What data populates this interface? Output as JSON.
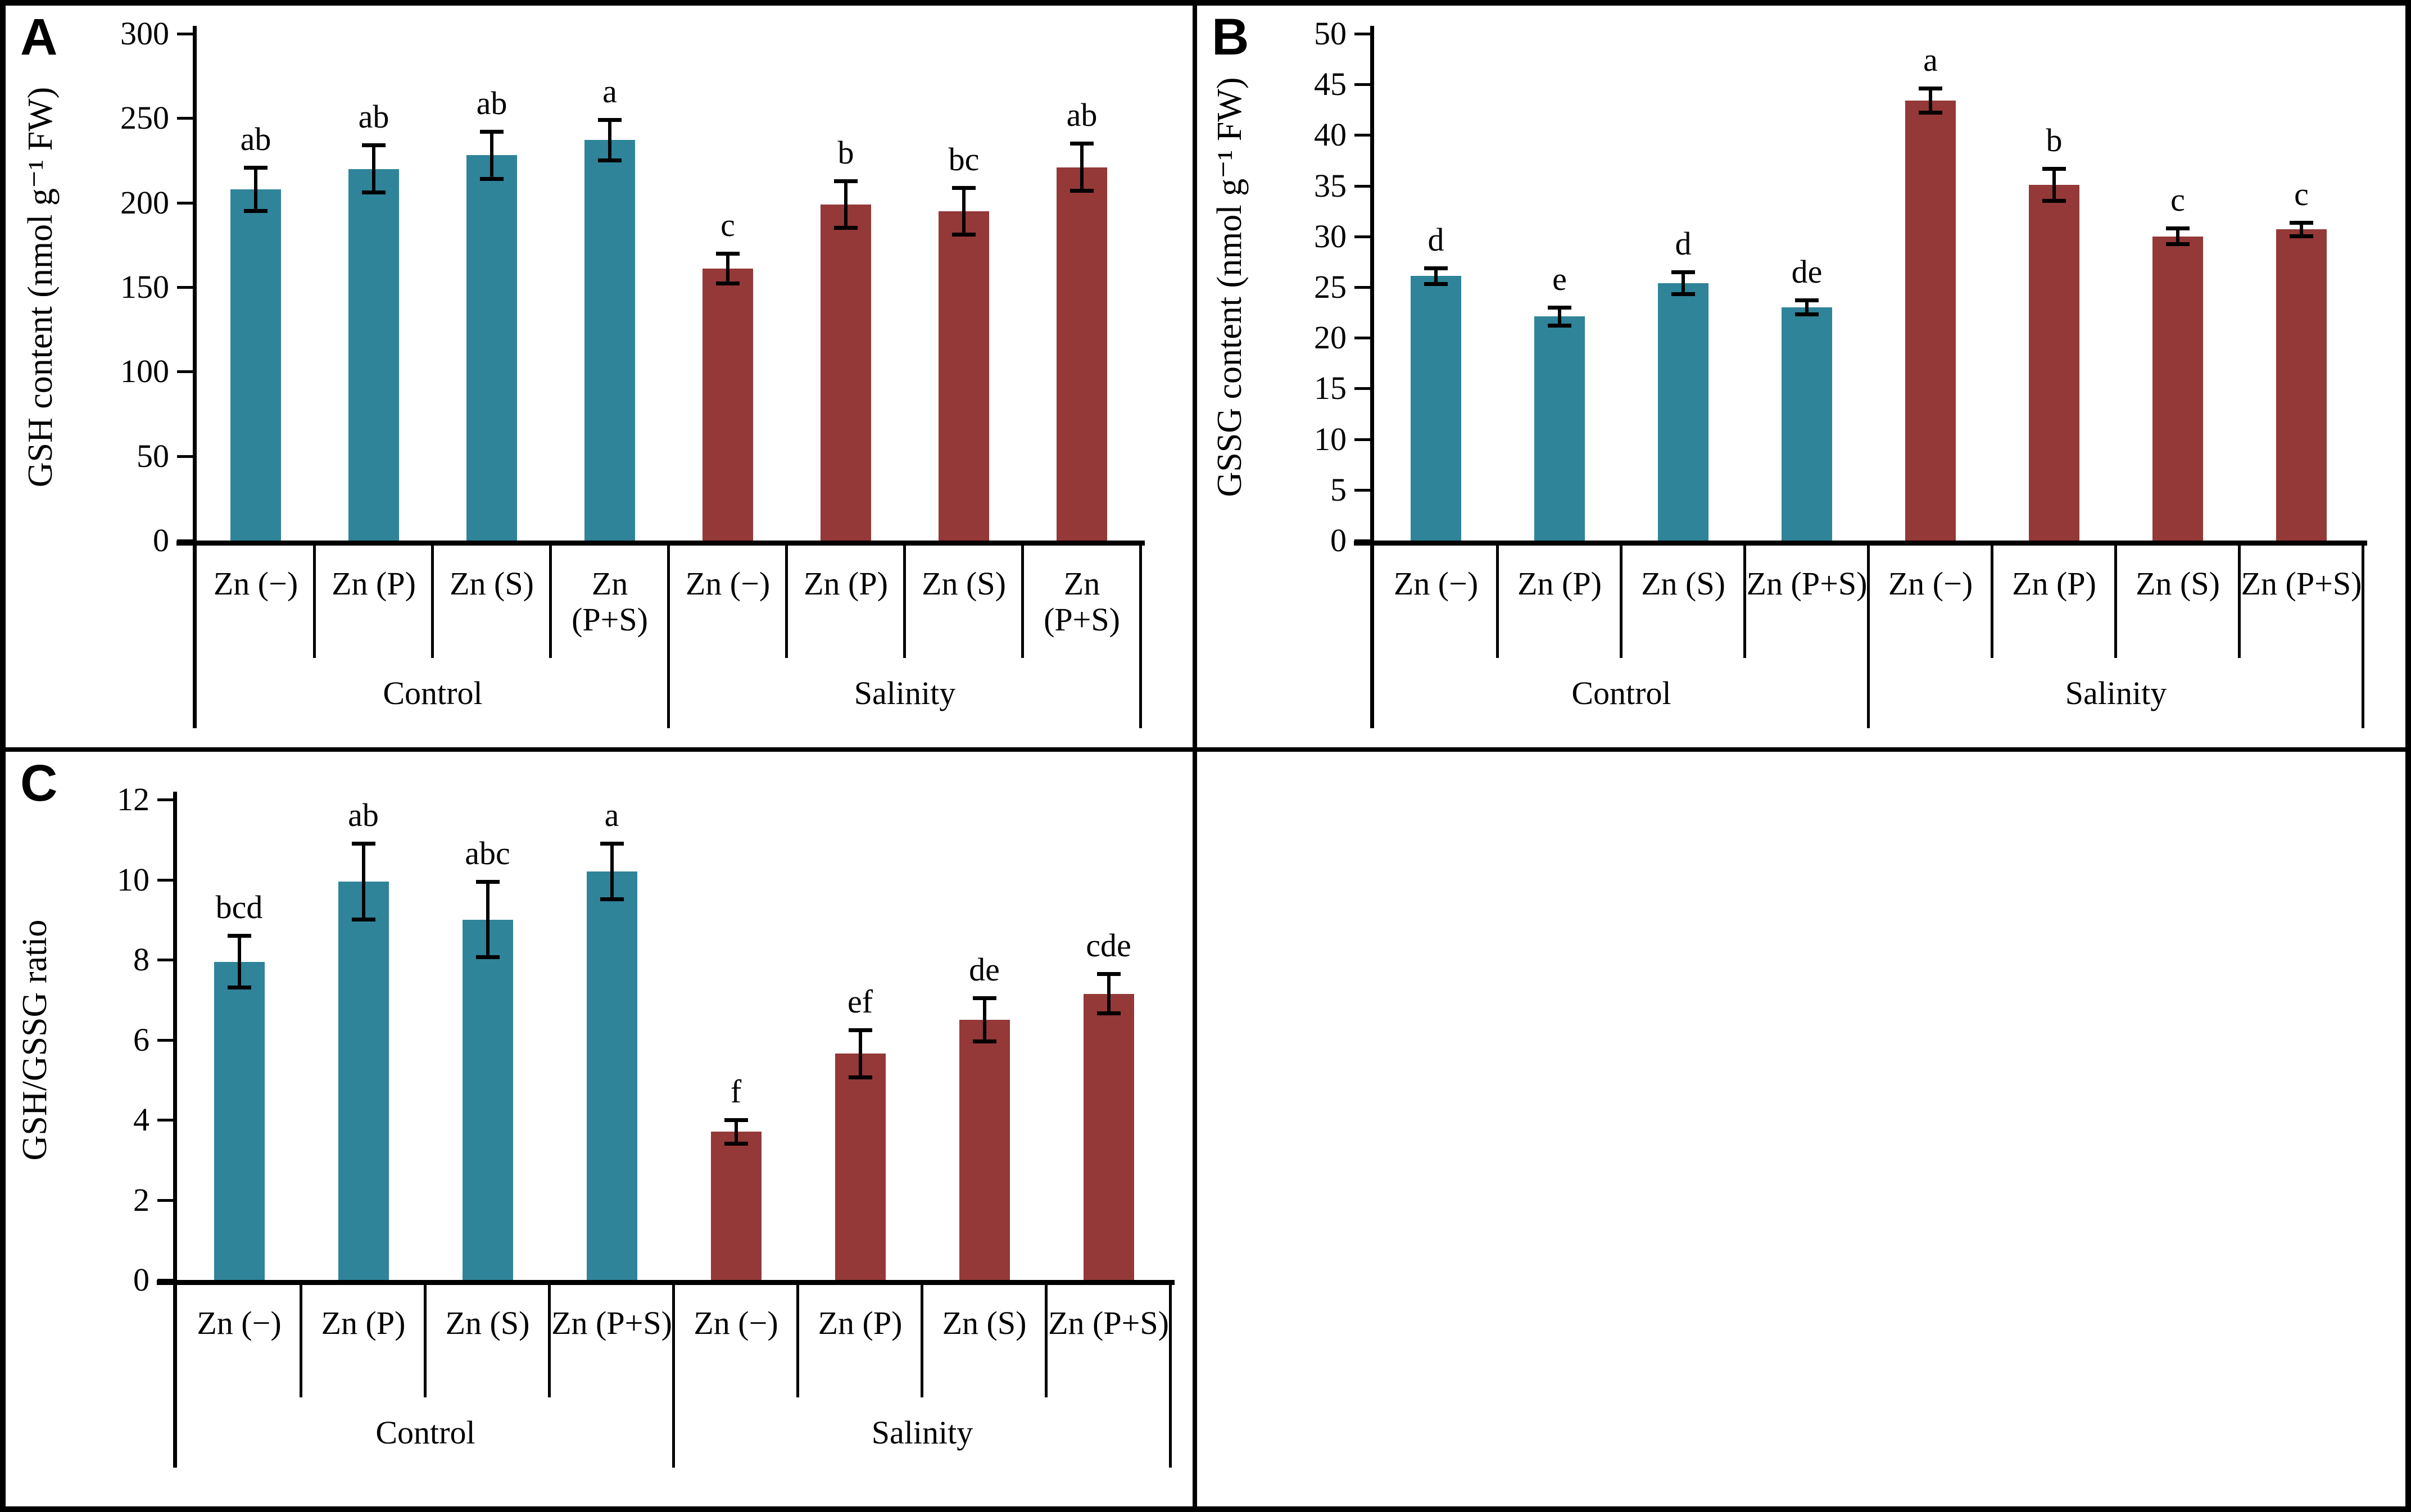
{
  "figure": {
    "panels": [
      {
        "letter": "A"
      },
      {
        "letter": "B"
      },
      {
        "letter": "C"
      }
    ]
  },
  "chart_data": [
    {
      "type": "bar",
      "title": "",
      "xlabel": "",
      "ylabel": "GSH content (nmol g⁻¹ FW)",
      "ylim": [
        0,
        300
      ],
      "ytick_step": 50,
      "grid": false,
      "legend_position": "none",
      "error_bars": true,
      "categories": [
        "Zn (−)",
        "Zn (P)",
        "Zn (S)",
        "Zn (P+S)"
      ],
      "group_labels": [
        "Control",
        "Salinity"
      ],
      "series": [
        {
          "name": "Control",
          "color": "#2F8499",
          "values": [
            208,
            220,
            228,
            237
          ],
          "errors": [
            13,
            14,
            14,
            12
          ],
          "sig_letters": [
            "ab",
            "ab",
            "ab",
            "a"
          ]
        },
        {
          "name": "Salinity",
          "color": "#943838",
          "values": [
            161,
            199,
            195,
            221
          ],
          "errors": [
            9,
            14,
            14,
            14
          ],
          "sig_letters": [
            "c",
            "b",
            "bc",
            "ab"
          ]
        }
      ]
    },
    {
      "type": "bar",
      "title": "",
      "xlabel": "",
      "ylabel": "GSSG content (nmol g⁻¹ FW)",
      "ylim": [
        0,
        50
      ],
      "ytick_step": 5,
      "grid": false,
      "legend_position": "none",
      "error_bars": true,
      "categories": [
        "Zn (−)",
        "Zn (P)",
        "Zn (S)",
        "Zn (P+S)"
      ],
      "group_labels": [
        "Control",
        "Salinity"
      ],
      "series": [
        {
          "name": "Control",
          "color": "#2F8499",
          "values": [
            26.1,
            22.1,
            25.4,
            23.0
          ],
          "errors": [
            0.8,
            0.9,
            1.1,
            0.7
          ],
          "sig_letters": [
            "d",
            "e",
            "d",
            "de"
          ]
        },
        {
          "name": "Salinity",
          "color": "#943838",
          "values": [
            43.4,
            35.1,
            30.0,
            30.7
          ],
          "errors": [
            1.2,
            1.6,
            0.8,
            0.7
          ],
          "sig_letters": [
            "a",
            "b",
            "c",
            "c"
          ]
        }
      ]
    },
    {
      "type": "bar",
      "title": "",
      "xlabel": "",
      "ylabel": "GSH/GSSG ratio",
      "ylim": [
        0,
        12
      ],
      "ytick_step": 2,
      "grid": false,
      "legend_position": "none",
      "error_bars": true,
      "categories": [
        "Zn (−)",
        "Zn (P)",
        "Zn (S)",
        "Zn (P+S)"
      ],
      "group_labels": [
        "Control",
        "Salinity"
      ],
      "series": [
        {
          "name": "Control",
          "color": "#2F8499",
          "values": [
            7.95,
            9.95,
            9.0,
            10.2
          ],
          "errors": [
            0.65,
            0.95,
            0.95,
            0.7
          ],
          "sig_letters": [
            "bcd",
            "ab",
            "abc",
            "a"
          ]
        },
        {
          "name": "Salinity",
          "color": "#943838",
          "values": [
            3.7,
            5.65,
            6.5,
            7.15
          ],
          "errors": [
            0.3,
            0.6,
            0.55,
            0.5
          ],
          "sig_letters": [
            "f",
            "ef",
            "de",
            "cde"
          ]
        }
      ]
    }
  ]
}
